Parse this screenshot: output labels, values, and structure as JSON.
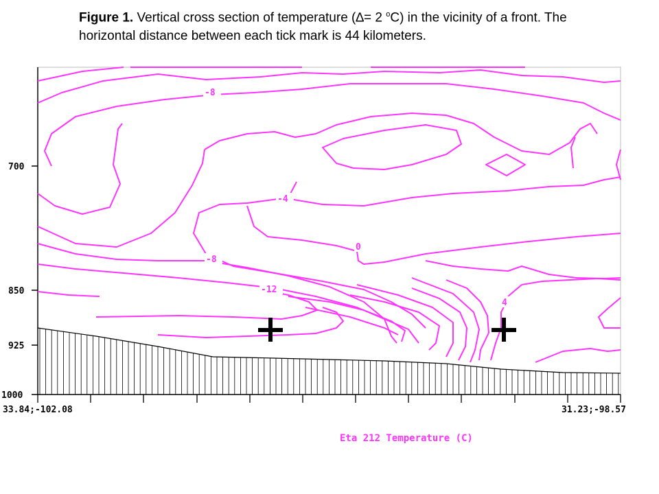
{
  "caption": {
    "bold_part": "Figure 1.",
    "text_1": " Vertical cross section of temperature (",
    "delta": "∆",
    "text_2": "= 2 ",
    "deg": "o",
    "text_3": "C) in the vicinity of a front. The horizontal distance between each tick mark is 44 kilometers."
  },
  "chart_data": {
    "type": "contour",
    "title": "Eta 212 Temperature (C)",
    "y_axis": {
      "scale": "pressure (inverted)",
      "range": [
        1000,
        590
      ],
      "tick_labels": [
        "700",
        "850",
        "925",
        "1000"
      ],
      "tick_values": [
        700,
        850,
        925,
        1000
      ]
    },
    "x_axis": {
      "left_label": "33.84;-102.08",
      "right_label": "31.23;-98.57",
      "tick_count": 11,
      "tick_spacing_km": 44
    },
    "contour_interval_c": 2,
    "contour_labels": [
      {
        "text": "-8",
        "level": -8
      },
      {
        "text": "-4",
        "level": -4
      },
      {
        "text": "0",
        "level": 0
      },
      {
        "text": "-8",
        "level": -8
      },
      {
        "text": "-12",
        "level": -12
      },
      {
        "text": "4",
        "level": 4
      }
    ],
    "markers": [
      {
        "symbol": "+",
        "location": "cold side, near 900 hPa"
      },
      {
        "symbol": "+",
        "location": "warm side, near 900 hPa"
      }
    ],
    "terrain": "hatched surface along the bottom",
    "colors": {
      "contours": "#ff33ff",
      "terrain": "#000000",
      "markers": "#000000"
    }
  }
}
